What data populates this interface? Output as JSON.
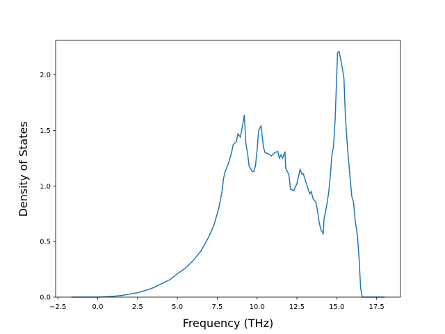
{
  "chart_data": {
    "type": "line",
    "xlabel": "Frequency (THz)",
    "ylabel": "Density of States",
    "xlim": [
      -2.64,
      19.0
    ],
    "ylim": [
      0,
      2.31
    ],
    "xticks": [
      {
        "value": -2.5,
        "label": "−2.5"
      },
      {
        "value": 0,
        "label": "0.0"
      },
      2.5,
      {
        "value": 5,
        "label": "5.0"
      },
      7.5,
      {
        "value": 10,
        "label": "10.0"
      },
      12.5,
      {
        "value": 15,
        "label": "15.0"
      },
      17.5
    ],
    "yticks": [
      {
        "value": 0,
        "label": "0.0"
      },
      0.5,
      {
        "value": 1,
        "label": "1.0"
      },
      1.5,
      {
        "value": 2,
        "label": "2.0"
      }
    ],
    "grid": false,
    "series": [
      {
        "color": "#1f77b4",
        "x": [
          -1.65,
          0,
          0.5,
          1.0,
          1.5,
          2.0,
          2.5,
          3.0,
          3.5,
          4.0,
          4.5,
          5.0,
          5.5,
          6.0,
          6.5,
          7.0,
          7.3,
          7.6,
          7.8,
          7.9,
          8.0,
          8.2,
          8.4,
          8.5,
          8.7,
          8.8,
          8.95,
          9.1,
          9.2,
          9.3,
          9.4,
          9.5,
          9.7,
          9.8,
          9.9,
          10.0,
          10.1,
          10.25,
          10.4,
          10.5,
          10.7,
          10.9,
          11.1,
          11.3,
          11.4,
          11.5,
          11.6,
          11.75,
          11.8,
          12.0,
          12.1,
          12.3,
          12.5,
          12.7,
          12.8,
          12.9,
          13.1,
          13.3,
          13.4,
          13.5,
          13.7,
          13.8,
          13.9,
          14.0,
          14.15,
          14.2,
          14.4,
          14.5,
          14.6,
          14.7,
          14.8,
          14.9,
          15.0,
          15.05,
          15.15,
          15.3,
          15.45,
          15.55,
          15.7,
          15.85,
          15.95,
          16.05,
          16.15,
          16.3,
          16.4,
          16.5,
          16.6,
          18.0
        ],
        "values": [
          0,
          0,
          0.003,
          0.008,
          0.015,
          0.027,
          0.04,
          0.06,
          0.085,
          0.12,
          0.155,
          0.21,
          0.26,
          0.33,
          0.42,
          0.55,
          0.65,
          0.8,
          0.95,
          1.07,
          1.13,
          1.2,
          1.3,
          1.37,
          1.4,
          1.47,
          1.44,
          1.55,
          1.64,
          1.38,
          1.3,
          1.18,
          1.13,
          1.13,
          1.18,
          1.32,
          1.5,
          1.54,
          1.35,
          1.3,
          1.29,
          1.27,
          1.3,
          1.31,
          1.25,
          1.28,
          1.25,
          1.31,
          1.16,
          1.1,
          0.97,
          0.96,
          1.02,
          1.15,
          1.11,
          1.11,
          1.02,
          0.93,
          0.95,
          0.89,
          0.85,
          0.77,
          0.67,
          0.61,
          0.57,
          0.7,
          0.85,
          0.95,
          1.1,
          1.28,
          1.36,
          1.6,
          2.0,
          2.2,
          2.21,
          2.1,
          1.97,
          1.6,
          1.3,
          1.05,
          0.9,
          0.86,
          0.7,
          0.55,
          0.35,
          0.08,
          0,
          0
        ]
      }
    ]
  }
}
